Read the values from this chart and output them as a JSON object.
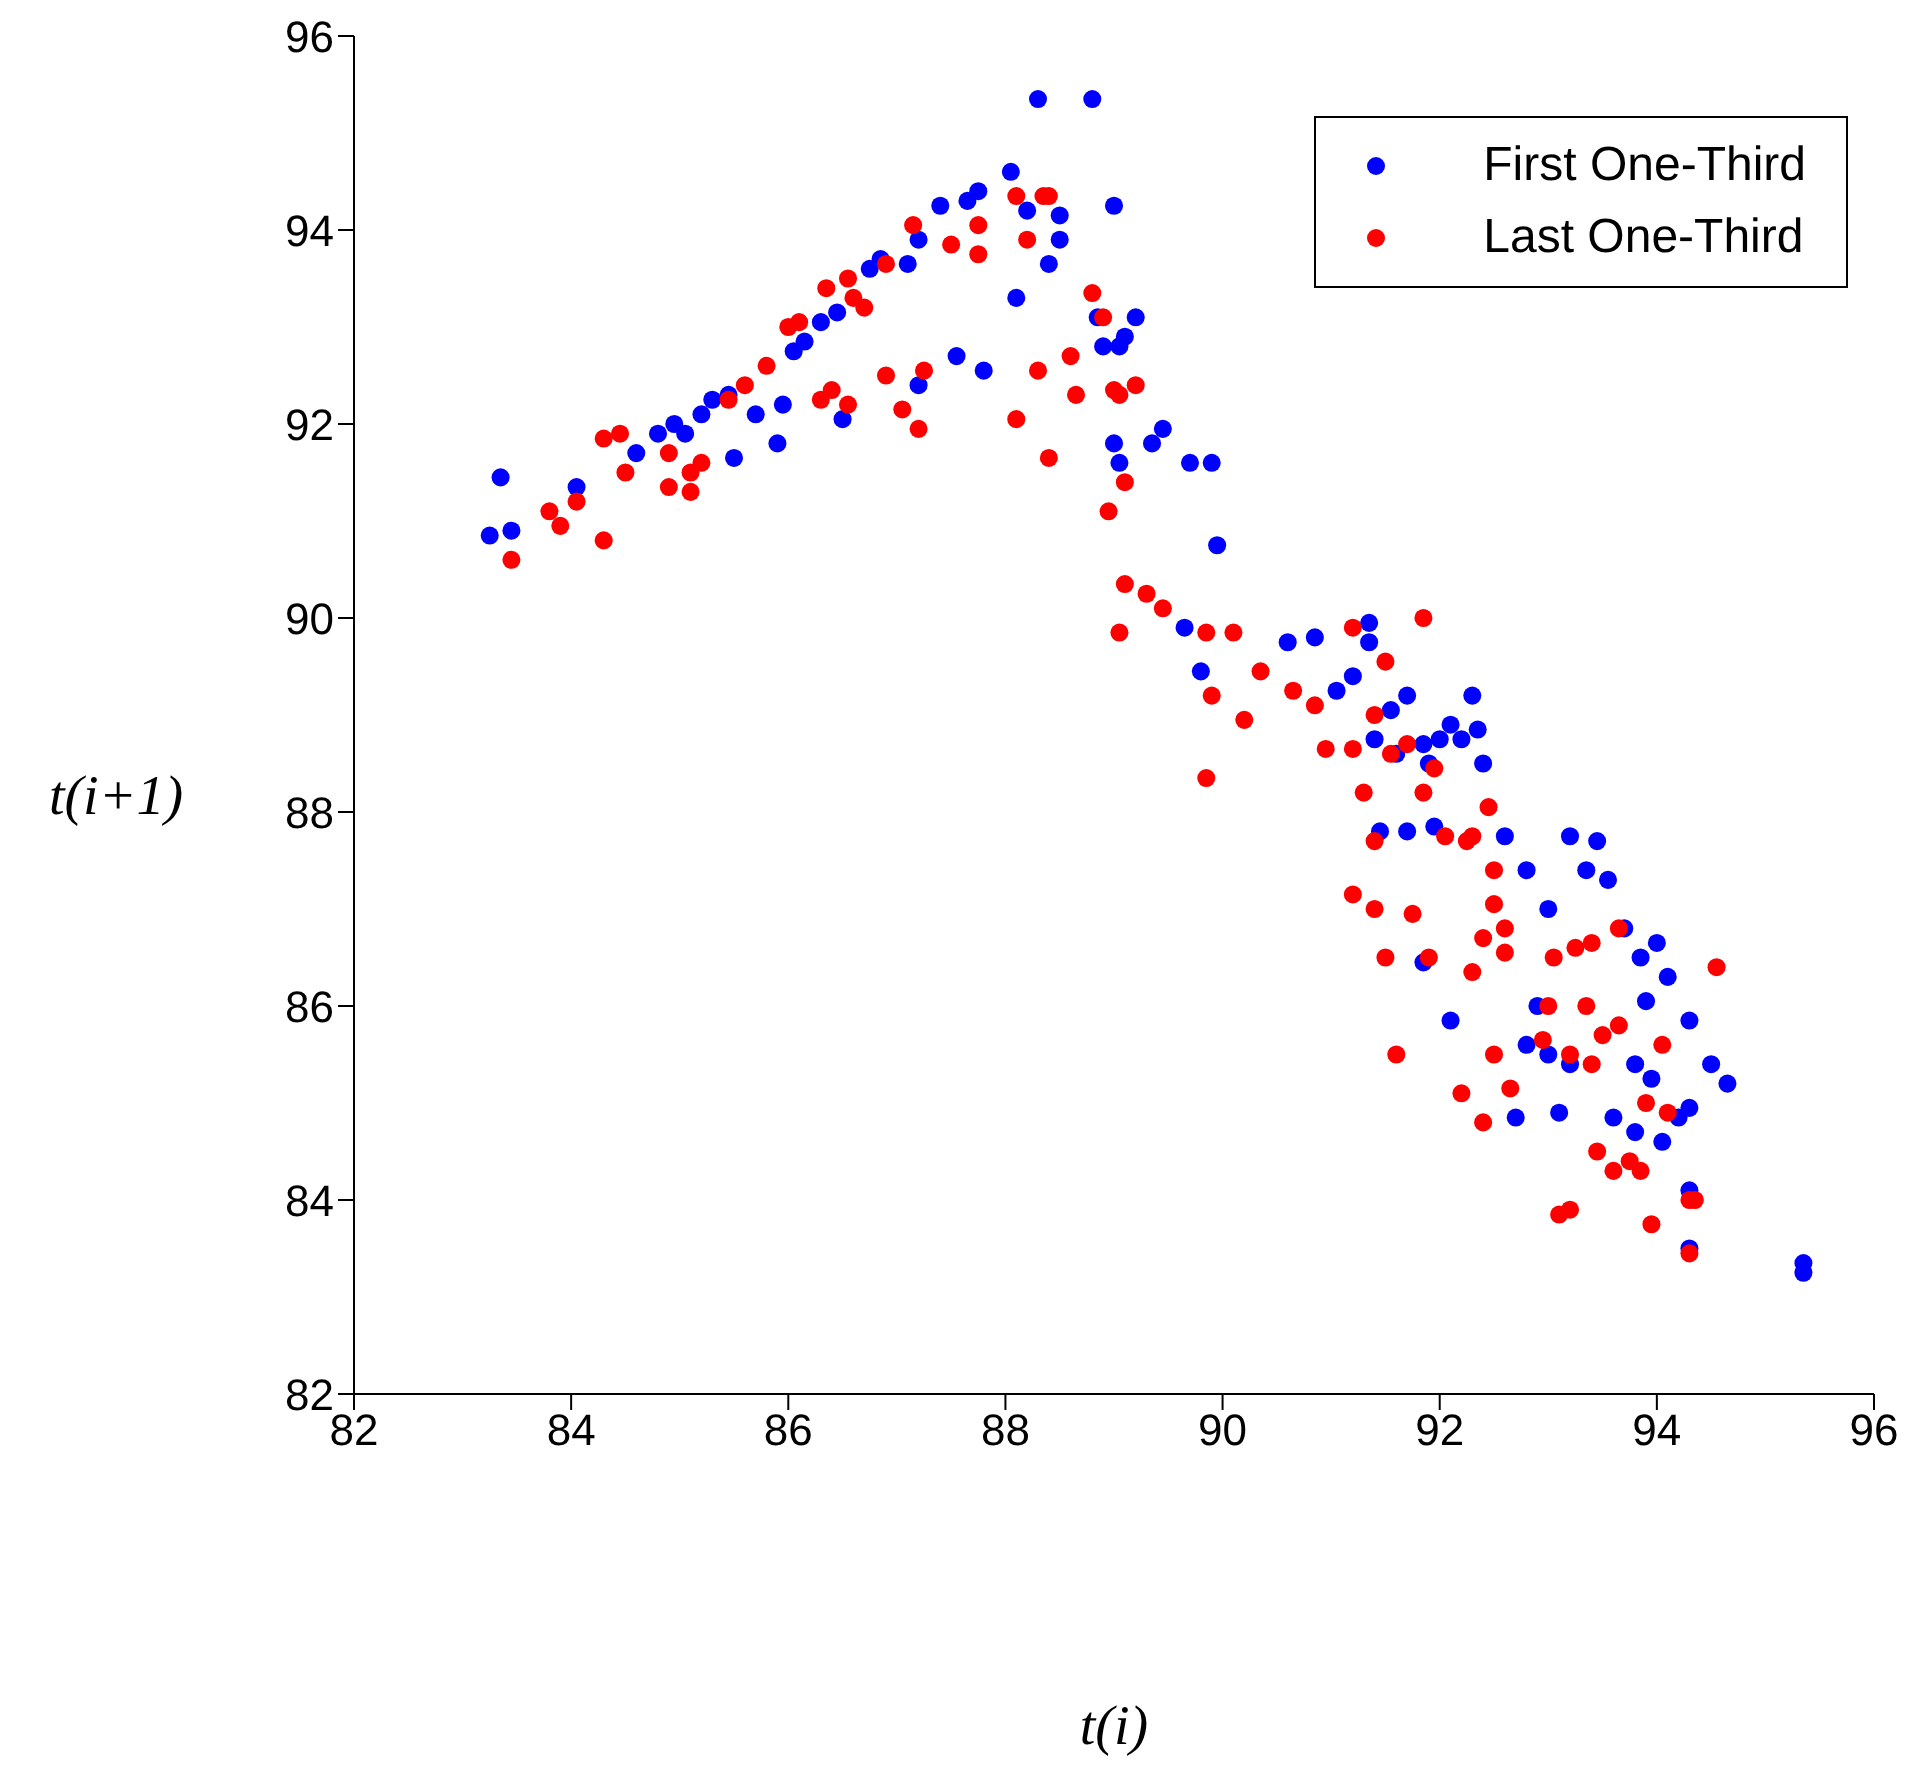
{
  "chart_data": {
    "type": "scatter",
    "xlabel": "t(i)",
    "ylabel": "t(i+1)",
    "xlim": [
      82,
      96
    ],
    "ylim": [
      82,
      96
    ],
    "xticks": [
      82,
      84,
      86,
      88,
      90,
      92,
      94,
      96
    ],
    "yticks": [
      82,
      84,
      86,
      88,
      90,
      92,
      94,
      96
    ],
    "grid": false,
    "legend": "top right",
    "marker": "circle",
    "series": [
      {
        "name": "First One-Third",
        "color": "#0000ff",
        "x": [
          83.25,
          83.35,
          83.45,
          84.05,
          84.6,
          84.8,
          84.95,
          85.05,
          85.2,
          85.3,
          85.45,
          85.5,
          85.7,
          85.9,
          85.95,
          86.05,
          86.15,
          86.3,
          86.45,
          86.5,
          86.75,
          86.85,
          87.1,
          87.2,
          87.2,
          87.4,
          87.55,
          87.65,
          87.75,
          87.8,
          88.05,
          88.1,
          88.2,
          88.3,
          88.4,
          88.5,
          88.5,
          88.8,
          88.85,
          89.0,
          88.9,
          89.05,
          89.1,
          89.2,
          89.35,
          89.45,
          89.0,
          89.05,
          89.7,
          89.9,
          89.95,
          89.8,
          89.65,
          90.6,
          90.85,
          91.05,
          91.35,
          91.35,
          91.55,
          91.2,
          91.7,
          91.85,
          91.9,
          92.0,
          92.1,
          92.2,
          92.3,
          92.4,
          92.35,
          91.4,
          91.6,
          91.95,
          91.7,
          91.85,
          92.1,
          91.45,
          92.6,
          92.8,
          93.0,
          93.2,
          93.45,
          93.35,
          93.55,
          93.7,
          93.85,
          94.0,
          94.1,
          93.9,
          94.3,
          94.5,
          94.65,
          94.3,
          94.2,
          93.8,
          94.05,
          94.3,
          95.35,
          95.35,
          93.2,
          92.9,
          93.1,
          92.7,
          92.8,
          93.6,
          93.0,
          93.8,
          93.95,
          94.3
        ],
        "values": [
          90.85,
          91.45,
          90.9,
          91.35,
          91.7,
          91.9,
          92.0,
          91.9,
          92.1,
          92.25,
          92.3,
          91.65,
          92.1,
          91.8,
          92.2,
          92.75,
          92.85,
          93.05,
          93.15,
          92.05,
          93.6,
          93.7,
          93.65,
          93.9,
          92.4,
          94.25,
          92.7,
          94.3,
          94.4,
          92.55,
          94.6,
          93.3,
          94.2,
          95.35,
          93.65,
          94.15,
          93.9,
          95.35,
          93.1,
          94.25,
          92.8,
          92.8,
          92.9,
          93.1,
          91.8,
          91.95,
          91.8,
          91.6,
          91.6,
          91.6,
          90.75,
          89.45,
          89.9,
          89.75,
          89.8,
          89.25,
          89.95,
          89.75,
          89.05,
          89.4,
          89.2,
          88.7,
          88.5,
          88.75,
          88.9,
          88.75,
          89.2,
          88.5,
          88.85,
          88.75,
          88.6,
          87.85,
          87.8,
          86.45,
          85.85,
          87.8,
          87.75,
          87.4,
          87.0,
          87.75,
          87.7,
          87.4,
          87.3,
          86.8,
          86.5,
          86.65,
          86.3,
          86.05,
          85.85,
          85.4,
          85.2,
          84.95,
          84.85,
          84.7,
          84.6,
          83.5,
          83.35,
          83.25,
          85.4,
          86.0,
          84.9,
          84.85,
          85.6,
          84.85,
          85.5,
          85.4,
          85.25,
          84.1
        ]
      },
      {
        "name": "Last One-Third",
        "color": "#ff0000",
        "x": [
          83.45,
          83.8,
          83.9,
          84.05,
          84.3,
          84.45,
          84.3,
          84.5,
          84.9,
          84.9,
          85.1,
          85.1,
          85.2,
          85.45,
          85.6,
          85.8,
          86.0,
          86.1,
          86.3,
          86.4,
          86.35,
          86.55,
          86.6,
          86.7,
          86.55,
          86.9,
          86.9,
          87.05,
          87.2,
          87.25,
          87.15,
          87.5,
          87.75,
          87.75,
          88.1,
          88.1,
          88.2,
          88.3,
          88.35,
          88.4,
          88.4,
          88.6,
          88.8,
          88.65,
          88.9,
          88.95,
          89.05,
          89.1,
          89.0,
          89.2,
          89.3,
          89.45,
          89.05,
          89.1,
          89.85,
          89.85,
          89.9,
          90.1,
          90.2,
          90.35,
          90.65,
          90.85,
          90.95,
          91.2,
          91.2,
          91.4,
          91.55,
          91.5,
          91.85,
          91.7,
          91.85,
          91.95,
          92.05,
          92.3,
          92.45,
          91.3,
          91.4,
          91.2,
          91.5,
          91.4,
          91.75,
          91.6,
          91.9,
          92.25,
          92.5,
          92.5,
          92.6,
          92.2,
          92.3,
          92.4,
          92.6,
          92.4,
          92.65,
          92.5,
          93.0,
          92.95,
          93.05,
          93.1,
          93.2,
          93.25,
          93.2,
          93.35,
          93.45,
          93.4,
          93.5,
          93.6,
          93.65,
          93.75,
          93.85,
          93.9,
          94.05,
          93.95,
          94.1,
          94.3,
          94.35,
          94.3,
          94.55,
          93.4,
          93.65
        ],
        "values": [
          90.6,
          91.1,
          90.95,
          91.2,
          91.85,
          91.9,
          90.8,
          91.5,
          91.35,
          91.7,
          91.5,
          91.3,
          91.6,
          92.25,
          92.4,
          92.6,
          93.0,
          93.05,
          92.25,
          92.35,
          93.4,
          93.5,
          93.3,
          93.2,
          92.2,
          92.5,
          93.65,
          92.15,
          91.95,
          92.55,
          94.05,
          93.85,
          94.05,
          93.75,
          94.35,
          92.05,
          93.9,
          92.55,
          94.35,
          94.35,
          91.65,
          92.7,
          93.35,
          92.3,
          93.1,
          91.1,
          92.3,
          91.4,
          92.35,
          92.4,
          90.25,
          90.1,
          89.85,
          90.35,
          89.85,
          88.35,
          89.2,
          89.85,
          88.95,
          89.45,
          89.25,
          89.1,
          88.65,
          89.9,
          88.65,
          89.0,
          88.6,
          89.55,
          90.0,
          88.7,
          88.2,
          88.45,
          87.75,
          87.75,
          88.05,
          88.2,
          87.7,
          87.15,
          86.5,
          87.0,
          86.95,
          85.5,
          86.5,
          87.7,
          87.4,
          87.05,
          86.8,
          85.1,
          86.35,
          86.7,
          86.55,
          84.8,
          85.15,
          85.5,
          86.0,
          85.65,
          86.5,
          83.85,
          83.9,
          86.6,
          85.5,
          86.0,
          84.5,
          85.4,
          85.7,
          84.3,
          85.8,
          84.4,
          84.3,
          85.0,
          85.6,
          83.75,
          84.9,
          84.0,
          84.0,
          83.45,
          86.4,
          86.65,
          86.8
        ]
      }
    ]
  }
}
